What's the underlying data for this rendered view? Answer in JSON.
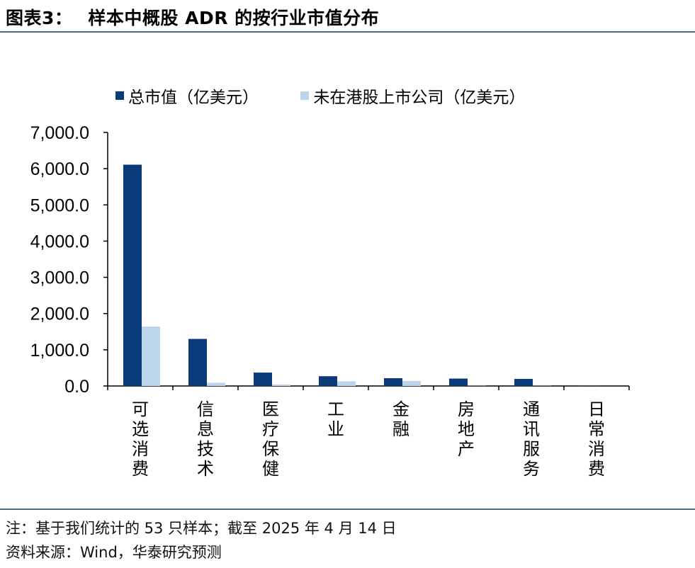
{
  "header": {
    "figure_label": "图表3：",
    "title": "样本中概股 ADR 的按行业市值分布"
  },
  "footer": {
    "note": "注：基于我们统计的 53 只样本；截至 2025 年 4 月 14 日",
    "source": "资料来源：Wind，华泰研究预测"
  },
  "colors": {
    "series1": "#0b3a7a",
    "series2": "#bcd5ec",
    "axis": "#000000",
    "rule": "#4e6a85"
  },
  "chart_data": {
    "type": "bar",
    "categories": [
      "可选消费",
      "信息技术",
      "医疗保健",
      "工业",
      "金融",
      "房地产",
      "通讯服务",
      "日常消费"
    ],
    "series": [
      {
        "name": "总市值（亿美元）",
        "values": [
          6110,
          1300,
          370,
          270,
          215,
          205,
          195,
          5
        ]
      },
      {
        "name": "未在港股上市公司（亿美元）",
        "values": [
          1640,
          90,
          40,
          130,
          140,
          5,
          5,
          0
        ]
      }
    ],
    "ylim": [
      0,
      7000
    ],
    "yticks": [
      "0.0",
      "1,000.0",
      "2,000.0",
      "3,000.0",
      "4,000.0",
      "5,000.0",
      "6,000.0",
      "7,000.0"
    ],
    "legend_position": "top",
    "grid": false
  }
}
